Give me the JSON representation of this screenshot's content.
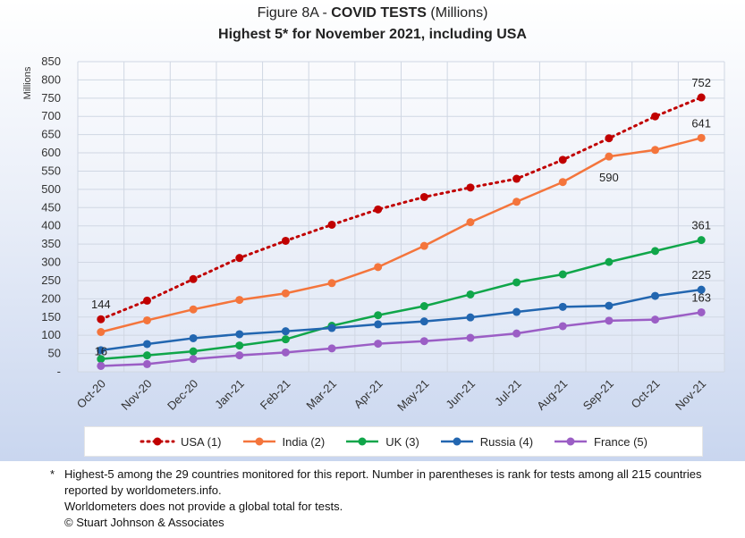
{
  "title": {
    "prefix": "Figure 8A - ",
    "bold": "COVID TESTS",
    "suffix": " (Millions)",
    "subtitle": "Highest 5* for November 2021, including USA"
  },
  "chart_data": {
    "type": "line",
    "title": "Figure 8A - COVID TESTS (Millions)",
    "subtitle": "Highest 5* for November 2021, including USA",
    "ylabel": "Millions",
    "ylim": [
      0,
      850
    ],
    "yticks": [
      0,
      50,
      100,
      150,
      200,
      250,
      300,
      350,
      400,
      450,
      500,
      550,
      600,
      650,
      700,
      750,
      800,
      850
    ],
    "ytick_labels": [
      "-",
      "50",
      "100",
      "150",
      "200",
      "250",
      "300",
      "350",
      "400",
      "450",
      "500",
      "550",
      "600",
      "650",
      "700",
      "750",
      "800",
      "850"
    ],
    "categories": [
      "Oct-20",
      "Nov-20",
      "Dec-20",
      "Jan-21",
      "Feb-21",
      "Mar-21",
      "Apr-21",
      "May-21",
      "Jun-21",
      "Jul-21",
      "Aug-21",
      "Sep-21",
      "Oct-21",
      "Nov-21"
    ],
    "grid": true,
    "legend_position": "bottom",
    "series": [
      {
        "name": "USA (1)",
        "color": "#c00000",
        "dashed": true,
        "values": [
          144,
          195,
          254,
          312,
          359,
          403,
          445,
          479,
          505,
          529,
          581,
          640,
          700,
          752
        ]
      },
      {
        "name": "India (2)",
        "color": "#f4753c",
        "dashed": false,
        "values": [
          109,
          141,
          171,
          197,
          215,
          243,
          287,
          345,
          410,
          466,
          520,
          590,
          608,
          641
        ]
      },
      {
        "name": "UK (3)",
        "color": "#10a64a",
        "dashed": false,
        "values": [
          35,
          45,
          56,
          72,
          89,
          126,
          155,
          180,
          212,
          245,
          267,
          301,
          331,
          361
        ]
      },
      {
        "name": "Russia (4)",
        "color": "#2266b0",
        "dashed": false,
        "values": [
          59,
          76,
          92,
          103,
          111,
          120,
          130,
          138,
          149,
          164,
          178,
          181,
          208,
          225
        ]
      },
      {
        "name": "France (5)",
        "color": "#9b5ec5",
        "dashed": false,
        "values": [
          16,
          21,
          35,
          45,
          53,
          64,
          77,
          84,
          93,
          105,
          125,
          140,
          143,
          163
        ]
      }
    ],
    "annotations": [
      {
        "text": "144",
        "series": 0,
        "index": 0,
        "pos": "above"
      },
      {
        "text": "752",
        "series": 0,
        "index": 13,
        "pos": "above"
      },
      {
        "text": "641",
        "series": 1,
        "index": 13,
        "pos": "above"
      },
      {
        "text": "590",
        "series": 1,
        "index": 11,
        "pos": "below"
      },
      {
        "text": "361",
        "series": 2,
        "index": 13,
        "pos": "above"
      },
      {
        "text": "225",
        "series": 3,
        "index": 13,
        "pos": "above"
      },
      {
        "text": "163",
        "series": 4,
        "index": 13,
        "pos": "above"
      },
      {
        "text": "16",
        "series": 4,
        "index": 0,
        "pos": "above"
      }
    ]
  },
  "footnotes": {
    "star": "*",
    "line1": "Highest-5 among the 29 countries monitored for this report. Number in parentheses is rank for tests among all 215  countries",
    "line2": "reported by worldometers.info.",
    "line3": "Worldometers does not provide a global total for tests.",
    "line4": "© Stuart Johnson & Associates"
  }
}
